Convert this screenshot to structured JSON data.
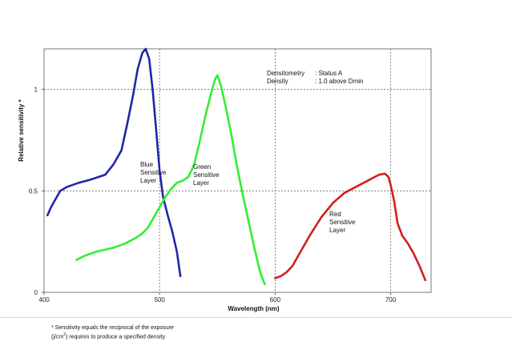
{
  "chart_data": {
    "type": "line",
    "xlabel": "Wavelength (nm)",
    "ylabel": "Relative sensitivity *",
    "xlim": [
      400,
      735
    ],
    "ylim": [
      0,
      1.2
    ],
    "xticks": [
      400,
      500,
      600,
      700
    ],
    "yticks": [
      0,
      0.5,
      1
    ],
    "ytick_labels": [
      "0",
      "0.5",
      "1"
    ],
    "grid": "dashed",
    "series": [
      {
        "name": "Blue Sensitive Layer",
        "label_lines": [
          "Blue",
          "Sensitive",
          "Layer"
        ],
        "color": "#1f27a8",
        "x": [
          403,
          406,
          410,
          414,
          420,
          430,
          440,
          453,
          460,
          467,
          472,
          477,
          481,
          485,
          488,
          491,
          494,
          497,
          500,
          503,
          507,
          511,
          515,
          518
        ],
        "y": [
          0.38,
          0.42,
          0.46,
          0.5,
          0.52,
          0.54,
          0.555,
          0.58,
          0.63,
          0.7,
          0.83,
          0.97,
          1.1,
          1.18,
          1.2,
          1.15,
          1.0,
          0.8,
          0.6,
          0.47,
          0.38,
          0.3,
          0.2,
          0.08
        ]
      },
      {
        "name": "Green Sensitive Layer",
        "label_lines": [
          "Green",
          "Sensitive",
          "Layer"
        ],
        "color": "#33ee33",
        "x": [
          428,
          435,
          445,
          460,
          470,
          480,
          485,
          490,
          495,
          500,
          505,
          510,
          515,
          520,
          525,
          530,
          535,
          540,
          545,
          548,
          550,
          553,
          557,
          562,
          567,
          572,
          577,
          582,
          587,
          591
        ],
        "y": [
          0.16,
          0.18,
          0.2,
          0.22,
          0.24,
          0.27,
          0.29,
          0.32,
          0.37,
          0.42,
          0.47,
          0.51,
          0.54,
          0.55,
          0.57,
          0.63,
          0.75,
          0.88,
          0.99,
          1.05,
          1.07,
          1.02,
          0.92,
          0.78,
          0.62,
          0.48,
          0.35,
          0.22,
          0.1,
          0.04
        ]
      },
      {
        "name": "Red Sensitive Layer",
        "label_lines": [
          "Red",
          "Sensitive",
          "Layer"
        ],
        "color": "#d11f1f",
        "x": [
          600,
          605,
          610,
          615,
          620,
          630,
          640,
          650,
          660,
          670,
          680,
          690,
          695,
          698,
          700,
          703,
          706,
          710,
          715,
          720,
          725,
          730
        ],
        "y": [
          0.07,
          0.08,
          0.1,
          0.13,
          0.18,
          0.28,
          0.37,
          0.44,
          0.49,
          0.52,
          0.55,
          0.58,
          0.585,
          0.57,
          0.53,
          0.45,
          0.34,
          0.28,
          0.24,
          0.19,
          0.13,
          0.06
        ]
      }
    ],
    "annotations": [
      {
        "key": "Densitometry",
        "value": ": Status A"
      },
      {
        "key": "Density",
        "value": ": 1.0 above  Dmin"
      }
    ]
  },
  "footnote": {
    "line1": "* Sensitivity equals the reciprocal of the exposure",
    "line2_pre": "(j/cm",
    "line2_sup": "2",
    "line2_post": ") requires to produce a specified density"
  }
}
